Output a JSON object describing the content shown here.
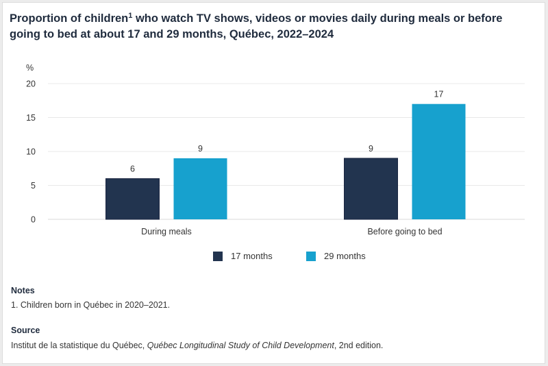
{
  "title": {
    "before_sup": "Proportion of children",
    "sup": "1",
    "after_sup": " who watch TV shows, videos or movies daily during meals or before going to bed at about 17 and 29 months, Québec, 2022–2024"
  },
  "chart_data": {
    "type": "bar",
    "title": "Proportion of children who watch TV shows, videos or movies daily during meals or before going to bed at about 17 and 29 months, Québec, 2022–2024",
    "xlabel": "",
    "ylabel": "%",
    "ylim": [
      0,
      20
    ],
    "yticks": [
      0,
      5,
      10,
      15,
      20
    ],
    "grid": true,
    "legend_position": "bottom-center",
    "categories": [
      "During meals",
      "Before going to bed"
    ],
    "series": [
      {
        "name": "17 months",
        "color": "#22344f",
        "values": [
          6,
          9
        ]
      },
      {
        "name": "29 months",
        "color": "#17a1ce",
        "values": [
          9,
          17
        ]
      }
    ]
  },
  "notes": {
    "heading": "Notes",
    "text": "1. Children born in Québec in 2020–2021."
  },
  "source": {
    "heading": "Source",
    "prefix": "Institut de la statistique du Québec, ",
    "italic": "Québec Longitudinal Study of Child Development",
    "suffix": ", 2nd edition."
  }
}
